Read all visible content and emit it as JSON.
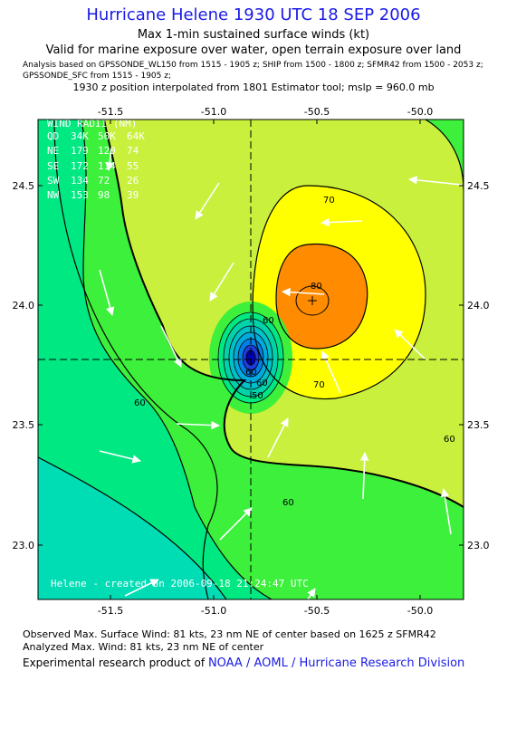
{
  "title": "Hurricane Helene 1930 UTC 18 SEP 2006",
  "subtitle": "Max 1-min sustained surface winds (kt)",
  "subtitle2": "Valid for marine exposure over water, open terrain exposure over land",
  "analysis_line1": "Analysis based on  GPSSONDE_WL150 from 1515 - 1905 z;  SHIP from 1500 - 1800 z;  SFMR42 from 1500 - 2053 z;",
  "analysis_line2": "GPSSONDE_SFC from 1515 - 1905 z;",
  "interp": "1930 z position interpolated from 1801 Estimator tool; mslp = 960.0 mb",
  "map": {
    "x_ticks": [
      "-51.5",
      "-51.0",
      "-50.5",
      "-50.0"
    ],
    "y_ticks": [
      "24.5",
      "24.0",
      "23.5",
      "23.0"
    ],
    "contour_labels": [
      "70",
      "80",
      "60",
      "60",
      "60",
      "70",
      "60",
      "60",
      "50",
      "60"
    ],
    "wind_radii": {
      "heading": "WIND RADII (NM)",
      "rows": [
        {
          "label": "QD",
          "c34": "34K",
          "c50": "50K",
          "c64": "64K"
        },
        {
          "label": "NE",
          "c34": "179",
          "c50": "120",
          "c64": "74"
        },
        {
          "label": "SE",
          "c34": "172",
          "c50": "114",
          "c64": "55"
        },
        {
          "label": "SW",
          "c34": "134",
          "c50": "72",
          "c64": "26"
        },
        {
          "label": "NW",
          "c34": "153",
          "c50": "98",
          "c64": "39"
        }
      ]
    },
    "credit": "Helene - created on 2006-09-18 21:24:47 UTC",
    "colors": {
      "c40": "#00dcb4",
      "c50": "#00e882",
      "c60": "#3cf03c",
      "c70": "#c8f03c",
      "c80": "#ffff00",
      "c90": "#ff8c00",
      "core": "#00a0e6"
    }
  },
  "footer": {
    "line1": "Observed Max. Surface Wind: 81 kts, 23 nm NE of center based on 1625 z SFMR42",
    "line2": "Analyzed Max. Wind: 81 kts, 23 nm NE of center",
    "line3_prefix": "Experimental research product of",
    "line3_link": "NOAA / AOML / Hurricane Research Division"
  }
}
